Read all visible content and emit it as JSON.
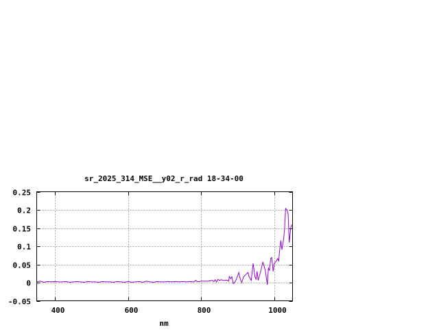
{
  "chart_data": {
    "type": "line",
    "title": "sr_2025_314_MSE__y02_r_rad 18-34-00",
    "xlabel": "nm",
    "ylabel": "",
    "xlim": [
      350,
      1050
    ],
    "ylim": [
      -0.05,
      0.25
    ],
    "xticks": [
      400,
      600,
      800,
      1000
    ],
    "xtick_labels": [
      "400",
      "600",
      "800",
      "1000"
    ],
    "yticks": [
      -0.05,
      0,
      0.05,
      0.1,
      0.15,
      0.2,
      0.25
    ],
    "ytick_labels": [
      "-0.05",
      "0",
      "0.05",
      "0.1",
      "0.15",
      "0.2",
      "0.25"
    ],
    "grid": true,
    "line_color": "#9400d3",
    "series": [
      {
        "x": [
          350,
          360,
          370,
          380,
          390,
          400,
          410,
          420,
          430,
          440,
          450,
          460,
          470,
          480,
          490,
          500,
          510,
          520,
          530,
          540,
          550,
          560,
          570,
          580,
          590,
          600,
          610,
          620,
          630,
          640,
          650,
          660,
          670,
          680,
          690,
          700,
          710,
          720,
          730,
          740,
          750,
          760,
          770,
          780,
          785,
          790,
          800,
          810,
          820,
          830,
          835,
          838,
          842,
          846,
          850,
          855,
          860,
          865,
          870,
          875,
          877,
          881,
          884,
          888,
          894,
          903,
          906,
          911,
          916,
          925,
          928,
          931,
          937,
          942,
          947,
          950,
          953,
          956,
          962,
          969,
          975,
          978,
          981,
          984,
          987,
          990,
          993,
          997,
          1000,
          1006,
          1009,
          1012,
          1015,
          1018,
          1021,
          1025,
          1028,
          1031,
          1035,
          1038,
          1041,
          1045,
          1048
        ],
        "y": [
          0.002,
          0.004,
          0.001,
          0.003,
          0.002,
          0.003,
          0.002,
          0.002,
          0.003,
          0.001,
          0.002,
          0.003,
          0.002,
          0.001,
          0.003,
          0.002,
          0.002,
          0.001,
          0.003,
          0.002,
          0.002,
          0.001,
          0.003,
          0.002,
          0.001,
          0.003,
          0.001,
          0.002,
          0.003,
          0.001,
          0.004,
          0.002,
          0.001,
          0.003,
          0.002,
          0.002,
          0.003,
          0.002,
          0.003,
          0.002,
          0.003,
          0.002,
          0.003,
          0.002,
          0.006,
          0.002,
          0.004,
          0.004,
          0.004,
          0.006,
          0.003,
          0.008,
          0.002,
          0.009,
          0.006,
          0.008,
          0.006,
          0.006,
          0.007,
          0.004,
          0.017,
          0.011,
          0.016,
          -0.003,
          0.004,
          0.028,
          0.013,
          0.0,
          0.016,
          0.025,
          0.028,
          0.016,
          0.006,
          0.053,
          0.016,
          0.009,
          0.031,
          0.006,
          0.028,
          0.057,
          0.035,
          0.016,
          -0.006,
          0.04,
          0.034,
          0.066,
          0.069,
          0.031,
          0.053,
          0.06,
          0.066,
          0.06,
          0.091,
          0.116,
          0.091,
          0.116,
          0.144,
          0.204,
          0.2,
          0.188,
          0.11,
          0.15,
          0.16
        ]
      }
    ]
  }
}
